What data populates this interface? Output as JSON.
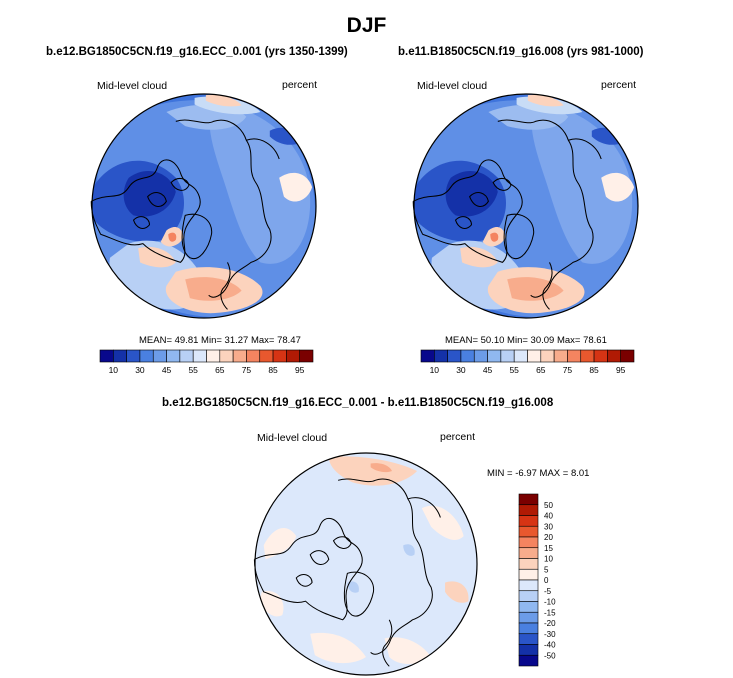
{
  "figure": {
    "title": "DJF",
    "colors": {
      "ocean_blue": "#4a80e0",
      "land_outline": "#000000",
      "warm": "#f4a582",
      "pale": "#d8e8fb"
    }
  },
  "chart_data": [
    {
      "id": "panel1",
      "type": "heatmap",
      "projection": "north-polar-stereographic",
      "title": "b.e12.BG1850C5CN.f19_g16.ECC_0.001 (yrs 1350-1399)",
      "variable_label": "Mid-level cloud",
      "units_label": "percent",
      "stats": {
        "mean": "49.81",
        "min": "31.27",
        "max": "78.47"
      },
      "stats_text": "MEAN=  49.81  Min=  31.27  Max=  78.47",
      "colorbar": {
        "orientation": "horizontal",
        "levels": [
          5,
          10,
          20,
          30,
          40,
          45,
          50,
          55,
          60,
          65,
          70,
          75,
          80,
          85,
          90,
          95
        ],
        "tick_labels": [
          "10",
          "30",
          "45",
          "55",
          "65",
          "75",
          "85",
          "95"
        ],
        "colors": [
          "#08088c",
          "#1431a8",
          "#2a55c8",
          "#4a80e0",
          "#6c9ce8",
          "#90b8f0",
          "#b8d0f5",
          "#dce8fb",
          "#fff0e8",
          "#fcd3bd",
          "#f8ac8c",
          "#f48460",
          "#e8582e",
          "#d63414",
          "#b01a04",
          "#7a0000"
        ]
      }
    },
    {
      "id": "panel2",
      "type": "heatmap",
      "projection": "north-polar-stereographic",
      "title": "b.e11.B1850C5CN.f19_g16.008 (yrs 981-1000)",
      "variable_label": "Mid-level cloud",
      "units_label": "percent",
      "stats": {
        "mean": "50.10",
        "min": "30.09",
        "max": "78.61"
      },
      "stats_text": "MEAN=  50.10  Min=  30.09  Max=  78.61",
      "colorbar": {
        "orientation": "horizontal",
        "levels": [
          5,
          10,
          20,
          30,
          40,
          45,
          50,
          55,
          60,
          65,
          70,
          75,
          80,
          85,
          90,
          95
        ],
        "tick_labels": [
          "10",
          "30",
          "45",
          "55",
          "65",
          "75",
          "85",
          "95"
        ],
        "colors": [
          "#08088c",
          "#1431a8",
          "#2a55c8",
          "#4a80e0",
          "#6c9ce8",
          "#90b8f0",
          "#b8d0f5",
          "#dce8fb",
          "#fff0e8",
          "#fcd3bd",
          "#f8ac8c",
          "#f48460",
          "#e8582e",
          "#d63414",
          "#b01a04",
          "#7a0000"
        ]
      }
    },
    {
      "id": "panel3",
      "type": "heatmap",
      "projection": "north-polar-stereographic",
      "title": "b.e12.BG1850C5CN.f19_g16.ECC_0.001 - b.e11.B1850C5CN.f19_g16.008",
      "variable_label": "Mid-level cloud",
      "units_label": "percent",
      "stats": {
        "min": "-6.97",
        "max": "8.01"
      },
      "stats_text": "MIN = -6.97 MAX =  8.01",
      "colorbar": {
        "orientation": "vertical",
        "tick_labels": [
          "50",
          "40",
          "30",
          "20",
          "15",
          "10",
          "5",
          "0",
          "-5",
          "-10",
          "-15",
          "-20",
          "-30",
          "-40",
          "-50"
        ],
        "colors": [
          "#7a0000",
          "#b01a04",
          "#d63414",
          "#e8582e",
          "#f48460",
          "#f8ac8c",
          "#fcd3bd",
          "#fff0e8",
          "#dce8fb",
          "#b8d0f5",
          "#90b8f0",
          "#6c9ce8",
          "#4a80e0",
          "#2a55c8",
          "#1431a8",
          "#08088c"
        ]
      }
    }
  ]
}
